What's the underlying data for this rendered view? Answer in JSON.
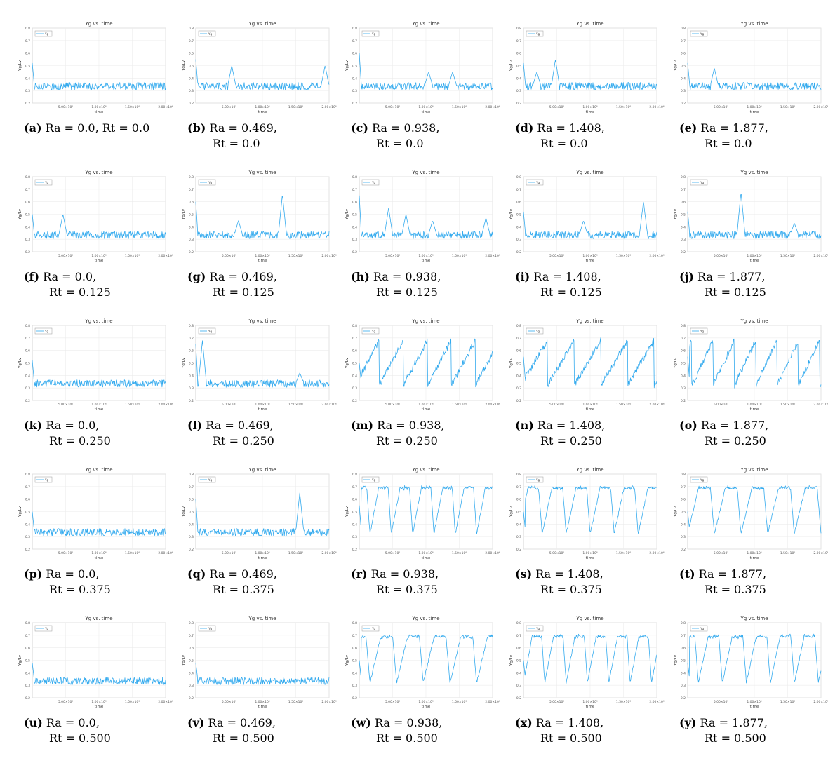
{
  "chart_data": {
    "type": "line",
    "layout": "5x5 grid of small line plots",
    "title": "Yg vs. time",
    "xlabel": "time",
    "ylabel": "Yg/Lv",
    "legend": {
      "label": "Yg",
      "placement": "top-left"
    },
    "xlim": [
      0,
      2000000
    ],
    "ylim": [
      0.2,
      0.8
    ],
    "x_ticks": [
      500000,
      1000000,
      1500000,
      2000000
    ],
    "x_tick_labels": [
      "5.00×10⁵",
      "1.00×10⁶",
      "1.50×10⁶",
      "2.00×10⁶"
    ],
    "y_ticks": [
      0.2,
      0.3,
      0.4,
      0.5,
      0.6,
      0.7,
      0.8
    ],
    "y_tick_labels": [
      "0.2",
      "0.3",
      "0.4",
      "0.5",
      "0.6",
      "0.7",
      "0.8"
    ],
    "grid": true,
    "series_color": "#33aaee",
    "panels": [
      {
        "label": "(a)",
        "line1": "Ra = 0.0, Rt = 0.0",
        "line2": "",
        "shape": "flat",
        "start": 0.52,
        "seed": 1,
        "bursts": []
      },
      {
        "label": "(b)",
        "line1": "Ra = 0.469,",
        "line2": "Rt = 0.0",
        "shape": "flat",
        "start": 0.55,
        "seed": 2,
        "bursts": [
          [
            0.27,
            0.5
          ],
          [
            0.97,
            0.5
          ]
        ]
      },
      {
        "label": "(c)",
        "line1": "Ra = 0.938,",
        "line2": "Rt = 0.0",
        "shape": "flat",
        "start": 0.6,
        "seed": 3,
        "bursts": [
          [
            0.52,
            0.45
          ],
          [
            0.7,
            0.45
          ]
        ]
      },
      {
        "label": "(d)",
        "line1": "Ra = 1.408,",
        "line2": "Rt = 0.0",
        "shape": "flat",
        "start": 0.52,
        "seed": 4,
        "bursts": [
          [
            0.1,
            0.45
          ],
          [
            0.24,
            0.55
          ]
        ]
      },
      {
        "label": "(e)",
        "line1": "Ra = 1.877,",
        "line2": "Rt = 0.0",
        "shape": "flat",
        "start": 0.52,
        "seed": 5,
        "bursts": [
          [
            0.2,
            0.48
          ]
        ]
      },
      {
        "label": "(f)",
        "line1": "Ra = 0.0,",
        "line2": "Rt = 0.125",
        "shape": "flat",
        "start": 0.5,
        "seed": 6,
        "bursts": [
          [
            0.23,
            0.5
          ]
        ]
      },
      {
        "label": "(g)",
        "line1": "Ra = 0.469,",
        "line2": "Rt = 0.125",
        "shape": "flat",
        "start": 0.6,
        "seed": 7,
        "bursts": [
          [
            0.32,
            0.45
          ],
          [
            0.65,
            0.66
          ]
        ]
      },
      {
        "label": "(h)",
        "line1": "Ra = 0.938,",
        "line2": "Rt = 0.125",
        "shape": "flat",
        "start": 0.65,
        "seed": 8,
        "bursts": [
          [
            0.22,
            0.55
          ],
          [
            0.35,
            0.5
          ],
          [
            0.55,
            0.45
          ],
          [
            0.95,
            0.47
          ]
        ]
      },
      {
        "label": "(i)",
        "line1": "Ra = 1.408,",
        "line2": "Rt = 0.125",
        "shape": "flat",
        "start": 0.52,
        "seed": 9,
        "bursts": [
          [
            0.45,
            0.45
          ],
          [
            0.9,
            0.6
          ]
        ]
      },
      {
        "label": "(j)",
        "line1": "Ra = 1.877,",
        "line2": "Rt = 0.125",
        "shape": "flat",
        "start": 0.52,
        "seed": 10,
        "bursts": [
          [
            0.4,
            0.68
          ],
          [
            0.8,
            0.43
          ]
        ]
      },
      {
        "label": "(k)",
        "line1": "Ra = 0.0,",
        "line2": "Rt = 0.250",
        "shape": "flat",
        "start": 0.52,
        "seed": 11,
        "bursts": []
      },
      {
        "label": "(l)",
        "line1": "Ra = 0.469,",
        "line2": "Rt = 0.250",
        "shape": "flat",
        "start": 0.65,
        "seed": 12,
        "bursts": [
          [
            0.05,
            0.68
          ],
          [
            0.78,
            0.42
          ]
        ]
      },
      {
        "label": "(m)",
        "line1": "Ra = 0.938,",
        "line2": "Rt = 0.250",
        "shape": "saw",
        "start": 0.5,
        "seed": 13,
        "bursts": []
      },
      {
        "label": "(n)",
        "line1": "Ra = 1.408,",
        "line2": "Rt = 0.250",
        "shape": "saw",
        "start": 0.55,
        "seed": 14,
        "bursts": []
      },
      {
        "label": "(o)",
        "line1": "Ra = 1.877,",
        "line2": "Rt = 0.250",
        "shape": "saw",
        "start": 0.55,
        "seed": 15,
        "bursts": []
      },
      {
        "label": "(p)",
        "line1": "Ra = 0.0,",
        "line2": "Rt = 0.375",
        "shape": "flat",
        "start": 0.5,
        "seed": 16,
        "bursts": []
      },
      {
        "label": "(q)",
        "line1": "Ra = 0.469,",
        "line2": "Rt = 0.375",
        "shape": "flat",
        "start": 0.6,
        "seed": 17,
        "bursts": [
          [
            0.78,
            0.65
          ]
        ]
      },
      {
        "label": "(r)",
        "line1": "Ra = 0.938,",
        "line2": "Rt = 0.375",
        "shape": "square",
        "start": 0.55,
        "seed": 18,
        "bursts": []
      },
      {
        "label": "(s)",
        "line1": "Ra = 1.408,",
        "line2": "Rt = 0.375",
        "shape": "square",
        "start": 0.5,
        "seed": 19,
        "bursts": []
      },
      {
        "label": "(t)",
        "line1": "Ra = 1.877,",
        "line2": "Rt = 0.375",
        "shape": "square",
        "start": 0.5,
        "seed": 20,
        "bursts": []
      },
      {
        "label": "(u)",
        "line1": "Ra = 0.0,",
        "line2": "Rt = 0.500",
        "shape": "flat",
        "start": 0.48,
        "seed": 21,
        "bursts": []
      },
      {
        "label": "(v)",
        "line1": "Ra = 0.469,",
        "line2": "Rt = 0.500",
        "shape": "flat",
        "start": 0.48,
        "seed": 22,
        "bursts": []
      },
      {
        "label": "(w)",
        "line1": "Ra = 0.938,",
        "line2": "Rt = 0.500",
        "shape": "square",
        "start": 0.5,
        "seed": 23,
        "bursts": []
      },
      {
        "label": "(x)",
        "line1": "Ra = 1.408,",
        "line2": "Rt = 0.500",
        "shape": "square",
        "start": 0.5,
        "seed": 24,
        "bursts": []
      },
      {
        "label": "(y)",
        "line1": "Ra = 1.877,",
        "line2": "Rt = 0.500",
        "shape": "square",
        "start": 0.48,
        "seed": 25,
        "bursts": []
      }
    ]
  }
}
